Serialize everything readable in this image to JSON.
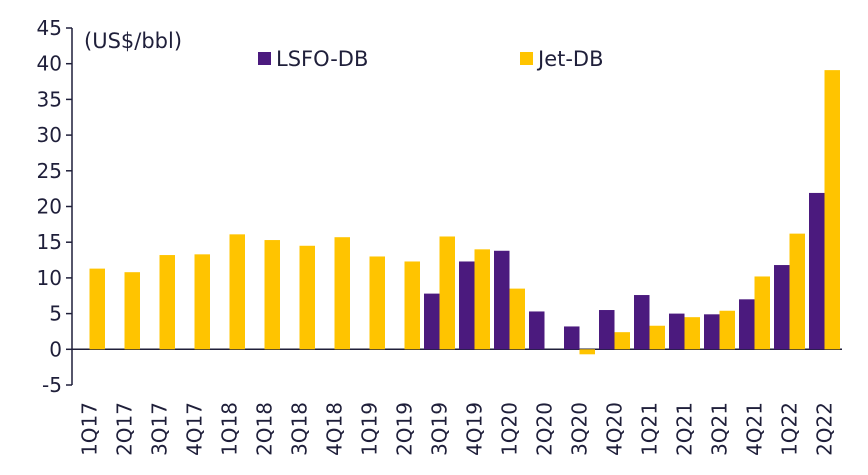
{
  "chart_data": {
    "type": "bar",
    "unit_label": "(US$/bbl)",
    "categories": [
      "1Q17",
      "2Q17",
      "3Q17",
      "4Q17",
      "1Q18",
      "2Q18",
      "3Q18",
      "4Q18",
      "1Q19",
      "2Q19",
      "3Q19",
      "4Q19",
      "1Q20",
      "2Q20",
      "3Q20",
      "4Q20",
      "1Q21",
      "2Q21",
      "3Q21",
      "4Q21",
      "1Q22",
      "2Q22"
    ],
    "series": [
      {
        "name": "LSFO-DB",
        "color": "#4b1a7e",
        "values": [
          null,
          null,
          null,
          null,
          null,
          null,
          null,
          null,
          null,
          null,
          7.8,
          12.3,
          13.8,
          5.3,
          3.2,
          5.5,
          7.6,
          5.0,
          4.9,
          7.0,
          11.8,
          21.9
        ]
      },
      {
        "name": "Jet-DB",
        "color": "#ffc400",
        "values": [
          11.3,
          10.8,
          13.2,
          13.3,
          16.1,
          15.3,
          14.5,
          15.7,
          13.0,
          12.3,
          15.8,
          14.0,
          8.5,
          null,
          -0.7,
          2.4,
          3.3,
          4.5,
          5.4,
          10.2,
          16.2,
          39.1
        ]
      }
    ],
    "ylim": [
      -5,
      45
    ],
    "yticks": [
      -5,
      0,
      5,
      10,
      15,
      20,
      25,
      30,
      35,
      40,
      45
    ],
    "legend_position": "top",
    "grid": false
  }
}
